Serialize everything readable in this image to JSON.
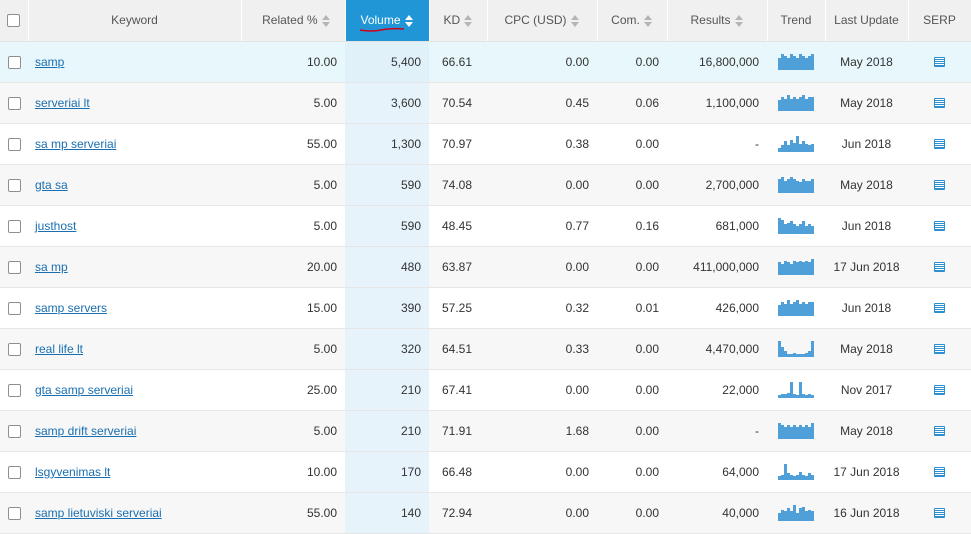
{
  "headers": {
    "keyword": "Keyword",
    "related": "Related %",
    "volume": "Volume",
    "kd": "KD",
    "cpc": "CPC (USD)",
    "com": "Com.",
    "results": "Results",
    "trend": "Trend",
    "last_update": "Last Update",
    "serp": "SERP"
  },
  "colors": {
    "active_header": "#2096d6",
    "link": "#1a6fb0",
    "volume_column": "#e6f3fb",
    "trend_bars": "#4f9fd8",
    "highlighted_row": "#e7f7fb"
  },
  "rows": [
    {
      "keyword": "samp",
      "related": "10.00",
      "volume": "5,400",
      "kd": "66.61",
      "cpc": "0.00",
      "com": "0.00",
      "results": "16,800,000",
      "last_update": "May 2018",
      "trend": [
        6,
        8,
        7,
        6,
        8,
        7,
        6,
        8,
        7,
        6,
        7,
        8
      ],
      "highlighted": true
    },
    {
      "keyword": "serveriai lt",
      "related": "5.00",
      "volume": "3,600",
      "kd": "70.54",
      "cpc": "0.45",
      "com": "0.06",
      "results": "1,100,000",
      "last_update": "May 2018",
      "trend": [
        6,
        8,
        7,
        9,
        7,
        8,
        7,
        8,
        9,
        7,
        8,
        8
      ]
    },
    {
      "keyword": "sa mp serveriai",
      "related": "55.00",
      "volume": "1,300",
      "kd": "70.97",
      "cpc": "0.38",
      "com": "0.00",
      "results": "-",
      "last_update": "Jun 2018",
      "trend": [
        3,
        5,
        8,
        5,
        9,
        7,
        12,
        6,
        8,
        6,
        5,
        6
      ]
    },
    {
      "keyword": "gta sa",
      "related": "5.00",
      "volume": "590",
      "kd": "74.08",
      "cpc": "0.00",
      "com": "0.00",
      "results": "2,700,000",
      "last_update": "May 2018",
      "trend": [
        8,
        9,
        7,
        8,
        9,
        8,
        7,
        6,
        8,
        7,
        7,
        8
      ]
    },
    {
      "keyword": "justhost",
      "related": "5.00",
      "volume": "590",
      "kd": "48.45",
      "cpc": "0.77",
      "com": "0.16",
      "results": "681,000",
      "last_update": "Jun 2018",
      "trend": [
        10,
        9,
        6,
        7,
        8,
        6,
        5,
        6,
        8,
        5,
        6,
        5
      ]
    },
    {
      "keyword": "sa mp",
      "related": "20.00",
      "volume": "480",
      "kd": "63.87",
      "cpc": "0.00",
      "com": "0.00",
      "results": "411,000,000",
      "last_update": "17 Jun 2018",
      "trend": [
        8,
        7,
        9,
        8,
        7,
        9,
        8,
        9,
        8,
        9,
        8,
        10
      ]
    },
    {
      "keyword": "samp servers",
      "related": "15.00",
      "volume": "390",
      "kd": "57.25",
      "cpc": "0.32",
      "com": "0.01",
      "results": "426,000",
      "last_update": "Jun 2018",
      "trend": [
        6,
        8,
        7,
        9,
        7,
        8,
        9,
        7,
        8,
        7,
        8,
        8
      ]
    },
    {
      "keyword": "real life lt",
      "related": "5.00",
      "volume": "320",
      "kd": "64.51",
      "cpc": "0.33",
      "com": "0.00",
      "results": "4,470,000",
      "last_update": "May 2018",
      "trend": [
        11,
        7,
        4,
        2,
        2,
        3,
        2,
        2,
        2,
        3,
        4,
        11
      ]
    },
    {
      "keyword": "gta samp serveriai",
      "related": "25.00",
      "volume": "210",
      "kd": "67.41",
      "cpc": "0.00",
      "com": "0.00",
      "results": "22,000",
      "last_update": "Nov 2017",
      "trend": [
        2,
        3,
        3,
        4,
        12,
        3,
        2,
        12,
        3,
        2,
        3,
        2
      ]
    },
    {
      "keyword": "samp drift serveriai",
      "related": "5.00",
      "volume": "210",
      "kd": "71.91",
      "cpc": "1.68",
      "com": "0.00",
      "results": "-",
      "last_update": "May 2018",
      "trend": [
        9,
        8,
        7,
        8,
        7,
        8,
        7,
        8,
        7,
        8,
        7,
        9
      ]
    },
    {
      "keyword": "lsgyvenimas lt",
      "related": "10.00",
      "volume": "170",
      "kd": "66.48",
      "cpc": "0.00",
      "com": "0.00",
      "results": "64,000",
      "last_update": "17 Jun 2018",
      "trend": [
        3,
        4,
        12,
        5,
        4,
        3,
        4,
        6,
        4,
        3,
        5,
        4
      ]
    },
    {
      "keyword": "samp lietuviski serveriai",
      "related": "55.00",
      "volume": "140",
      "kd": "72.94",
      "cpc": "0.00",
      "com": "0.00",
      "results": "40,000",
      "last_update": "16 Jun 2018",
      "trend": [
        5,
        7,
        6,
        8,
        6,
        10,
        5,
        8,
        9,
        6,
        7,
        6
      ]
    }
  ]
}
